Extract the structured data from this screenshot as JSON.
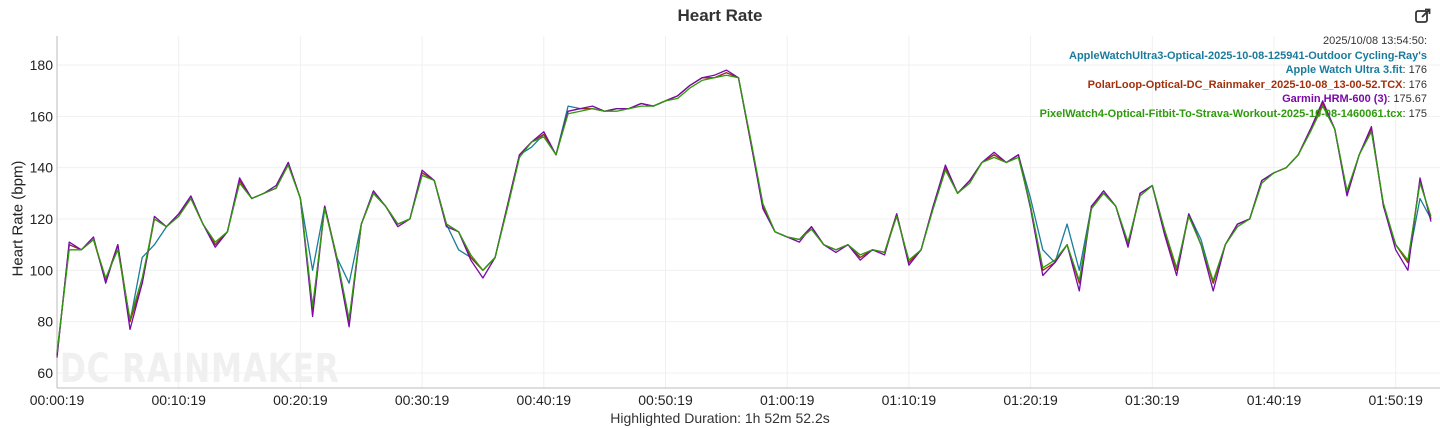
{
  "chart_data": {
    "type": "line",
    "title": "Heart Rate",
    "ylabel": "Heart Rate (bpm)",
    "xlabel": "Highlighted Duration: 1h 52m 52.2s",
    "x_start": "00:00:19",
    "x_interval_seconds": 60,
    "x_ticks": [
      "00:00:19",
      "00:10:19",
      "00:20:19",
      "00:30:19",
      "00:40:19",
      "00:50:19",
      "01:00:19",
      "01:10:19",
      "01:20:19",
      "01:30:19",
      "01:40:19",
      "01:50:19"
    ],
    "y_ticks": [
      60,
      80,
      100,
      120,
      140,
      160,
      180
    ],
    "ylim": [
      54,
      192
    ],
    "grid": true,
    "legend_placement": "top-right",
    "watermark": "DC RAINMAKER",
    "tooltip": {
      "timestamp": "2025/10/08 13:54:50:",
      "entries": [
        {
          "name": "AppleWatchUltra3-Optical-2025-10-08-125941-Outdoor Cycling-Ray's",
          "value": ""
        },
        {
          "name": "Apple Watch Ultra 3.fit",
          "value": ": 176"
        },
        {
          "name": "PolarLoop-Optical-DC_Rainmaker_2025-10-08_13-00-52.TCX",
          "value": ": 176"
        },
        {
          "name": "Garmin HRM-600 (3)",
          "value": ": 175.67"
        },
        {
          "name": "PixelWatch4-Optical-Fitbit-To-Strava-Workout-2025-10-08-1460061.tcx",
          "value": ": 175"
        }
      ]
    },
    "series": [
      {
        "name": "AppleWatchUltra3-Optical-2025-10-08-125941-Outdoor Cycling-Ray's Apple Watch Ultra 3.fit",
        "color": "#1b7b9c",
        "values": [
          67,
          110,
          108,
          112,
          96,
          110,
          80,
          105,
          110,
          117,
          122,
          128,
          118,
          110,
          115,
          135,
          128,
          130,
          132,
          142,
          128,
          100,
          125,
          105,
          95,
          118,
          130,
          125,
          118,
          120,
          138,
          135,
          118,
          108,
          105,
          100,
          105,
          125,
          145,
          148,
          153,
          145,
          164,
          163,
          163,
          162,
          163,
          163,
          165,
          164,
          166,
          168,
          172,
          175,
          175,
          177,
          175,
          150,
          125,
          115,
          113,
          112,
          117,
          110,
          108,
          110,
          105,
          108,
          107,
          122,
          103,
          108,
          125,
          140,
          130,
          135,
          142,
          145,
          142,
          145,
          128,
          108,
          103,
          118,
          100,
          125,
          130,
          125,
          110,
          130,
          133,
          115,
          100,
          122,
          112,
          95,
          110,
          118,
          120,
          135,
          138,
          140,
          145,
          155,
          165,
          155,
          130,
          145,
          155,
          125,
          110,
          103,
          128,
          120
        ]
      },
      {
        "name": "PolarLoop-Optical-DC_Rainmaker_2025-10-08_13-00-52.TCX",
        "color": "#a3300c",
        "values": [
          67,
          110,
          108,
          112,
          96,
          110,
          80,
          95,
          120,
          117,
          122,
          128,
          118,
          110,
          115,
          135,
          128,
          130,
          132,
          142,
          128,
          85,
          125,
          105,
          80,
          118,
          130,
          125,
          118,
          120,
          138,
          135,
          118,
          115,
          105,
          100,
          105,
          125,
          145,
          150,
          153,
          145,
          162,
          163,
          163,
          162,
          163,
          163,
          165,
          164,
          166,
          168,
          172,
          175,
          175,
          177,
          175,
          150,
          125,
          115,
          113,
          112,
          117,
          110,
          108,
          110,
          105,
          108,
          107,
          122,
          103,
          108,
          125,
          140,
          130,
          135,
          142,
          145,
          142,
          145,
          125,
          100,
          103,
          110,
          95,
          125,
          130,
          125,
          110,
          130,
          133,
          115,
          100,
          122,
          110,
          95,
          110,
          118,
          120,
          135,
          138,
          140,
          145,
          155,
          165,
          155,
          130,
          145,
          155,
          125,
          110,
          103,
          135,
          120
        ]
      },
      {
        "name": "Garmin HRM-600 (3)",
        "color": "#7a0aa8",
        "values": [
          66,
          111,
          108,
          113,
          95,
          110,
          77,
          95,
          121,
          117,
          122,
          129,
          118,
          109,
          115,
          136,
          128,
          130,
          133,
          142,
          128,
          82,
          125,
          104,
          78,
          118,
          131,
          125,
          117,
          120,
          139,
          135,
          117,
          115,
          104,
          97,
          105,
          125,
          145,
          150,
          154,
          145,
          162,
          163,
          164,
          162,
          163,
          163,
          165,
          164,
          166,
          168,
          172,
          175,
          176,
          178,
          175,
          150,
          124,
          115,
          113,
          111,
          117,
          110,
          107,
          110,
          104,
          108,
          106,
          122,
          102,
          108,
          125,
          141,
          130,
          135,
          142,
          146,
          142,
          145,
          124,
          98,
          103,
          110,
          92,
          125,
          131,
          125,
          109,
          130,
          133,
          114,
          98,
          122,
          110,
          92,
          110,
          118,
          120,
          135,
          138,
          140,
          145,
          155,
          166,
          155,
          129,
          145,
          156,
          125,
          108,
          100,
          136,
          119
        ]
      },
      {
        "name": "PixelWatch4-Optical-Fitbit-To-Strava-Workout-2025-10-08-1460061.tcx",
        "color": "#2f9a0c",
        "values": [
          68,
          108,
          108,
          112,
          97,
          108,
          81,
          97,
          120,
          117,
          121,
          128,
          118,
          111,
          115,
          134,
          128,
          130,
          132,
          141,
          128,
          86,
          124,
          105,
          81,
          118,
          130,
          125,
          118,
          120,
          137,
          135,
          118,
          115,
          106,
          100,
          105,
          124,
          144,
          150,
          152,
          145,
          161,
          162,
          163,
          162,
          162,
          163,
          164,
          164,
          166,
          167,
          171,
          174,
          175,
          176,
          175,
          151,
          126,
          115,
          113,
          112,
          116,
          110,
          108,
          110,
          106,
          108,
          107,
          121,
          104,
          108,
          124,
          139,
          130,
          134,
          142,
          144,
          142,
          144,
          125,
          101,
          104,
          110,
          96,
          124,
          130,
          125,
          111,
          129,
          133,
          116,
          101,
          121,
          110,
          96,
          110,
          117,
          120,
          134,
          138,
          140,
          145,
          154,
          164,
          155,
          131,
          145,
          154,
          126,
          110,
          104,
          134,
          121
        ]
      }
    ]
  },
  "toolbar": {
    "export_icon": "external-link-icon"
  }
}
